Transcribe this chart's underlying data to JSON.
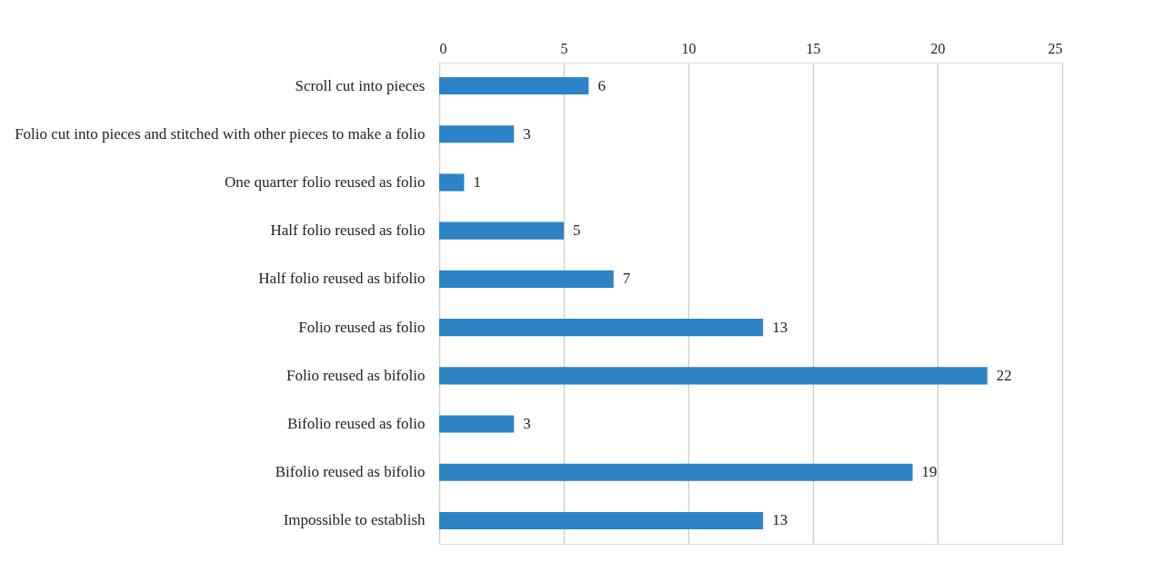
{
  "chart_data": {
    "type": "bar",
    "orientation": "horizontal",
    "categories": [
      "Scroll cut into pieces",
      "Folio cut into pieces and stitched with other pieces to make a folio",
      "One quarter folio reused as folio",
      "Half folio reused as folio",
      "Half folio reused as bifolio",
      "Folio reused as folio",
      "Folio reused as bifolio",
      "Bifolio reused as folio",
      "Bifolio reused as bifolio",
      "Impossible to establish"
    ],
    "values": [
      6,
      3,
      1,
      5,
      7,
      13,
      22,
      3,
      19,
      13
    ],
    "color": "#2e83c6",
    "xlim": [
      0,
      25
    ],
    "xticks": [
      0,
      5,
      10,
      15,
      20,
      25
    ],
    "grid": "x",
    "data_labels": true
  }
}
